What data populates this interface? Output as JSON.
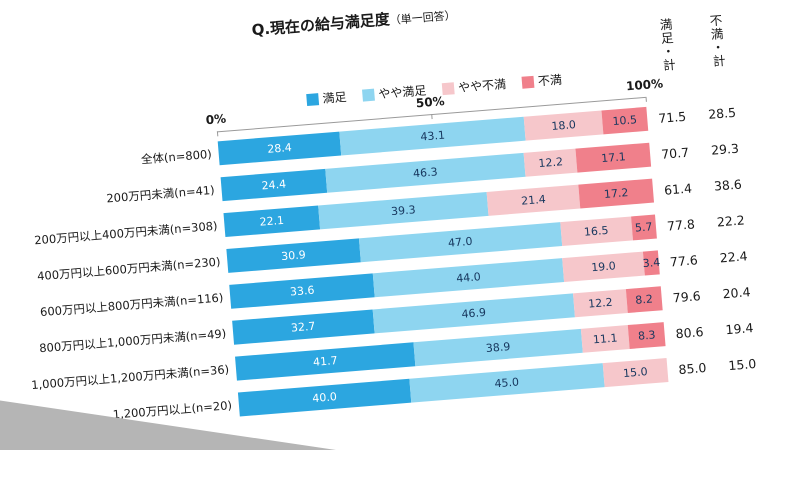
{
  "colors": {
    "page": "#ffffff",
    "desk": "#b5b5b5",
    "axis_line": "#9a9a9a",
    "text": "#1a1a1a"
  },
  "chart_data": {
    "type": "stacked-bar-horizontal",
    "title": "Q.現在の給与満足度（単一回答）",
    "title_main": "Q.現在の給与満足度",
    "title_note": "（単一回答）",
    "legend_position": "top",
    "grid": false,
    "x_axis": {
      "ticks": [
        "0%",
        "50%",
        "100%"
      ],
      "range": [
        0,
        100
      ]
    },
    "categories": [
      "全体(n=800)",
      "200万円未満(n=41)",
      "200万円以上400万円未満(n=308)",
      "400万円以上600万円未満(n=230)",
      "600万円以上800万円未満(n=116)",
      "800万円以上1,000万円未満(n=49)",
      "1,000万円以上1,200万円未満(n=36)",
      "1,200万円以上(n=20)"
    ],
    "series": [
      {
        "name": "満足",
        "color": "#2CA6E0",
        "text_color": "#ffffff",
        "values": [
          28.4,
          24.4,
          22.1,
          30.9,
          33.6,
          32.7,
          41.7,
          40.0
        ]
      },
      {
        "name": "やや満足",
        "color": "#8ED5F0",
        "text_color": "#17375e",
        "values": [
          43.1,
          46.3,
          39.3,
          47.0,
          44.0,
          46.9,
          38.9,
          45.0
        ]
      },
      {
        "name": "やや不満",
        "color": "#F6C7CB",
        "text_color": "#17375e",
        "values": [
          18.0,
          12.2,
          21.4,
          16.5,
          19.0,
          12.2,
          11.1,
          15.0
        ]
      },
      {
        "name": "不満",
        "color": "#F0808B",
        "text_color": "#17375e",
        "values": [
          10.5,
          17.1,
          17.2,
          5.7,
          3.4,
          8.2,
          8.3,
          0.0
        ]
      }
    ],
    "totals": {
      "satisfied_header": "満足・計",
      "dissatisfied_header": "不満・計",
      "satisfied": [
        71.5,
        70.7,
        61.4,
        77.8,
        77.6,
        79.6,
        80.6,
        85.0
      ],
      "dissatisfied": [
        28.5,
        29.3,
        38.6,
        22.2,
        22.4,
        20.4,
        19.4,
        15.0
      ]
    }
  }
}
